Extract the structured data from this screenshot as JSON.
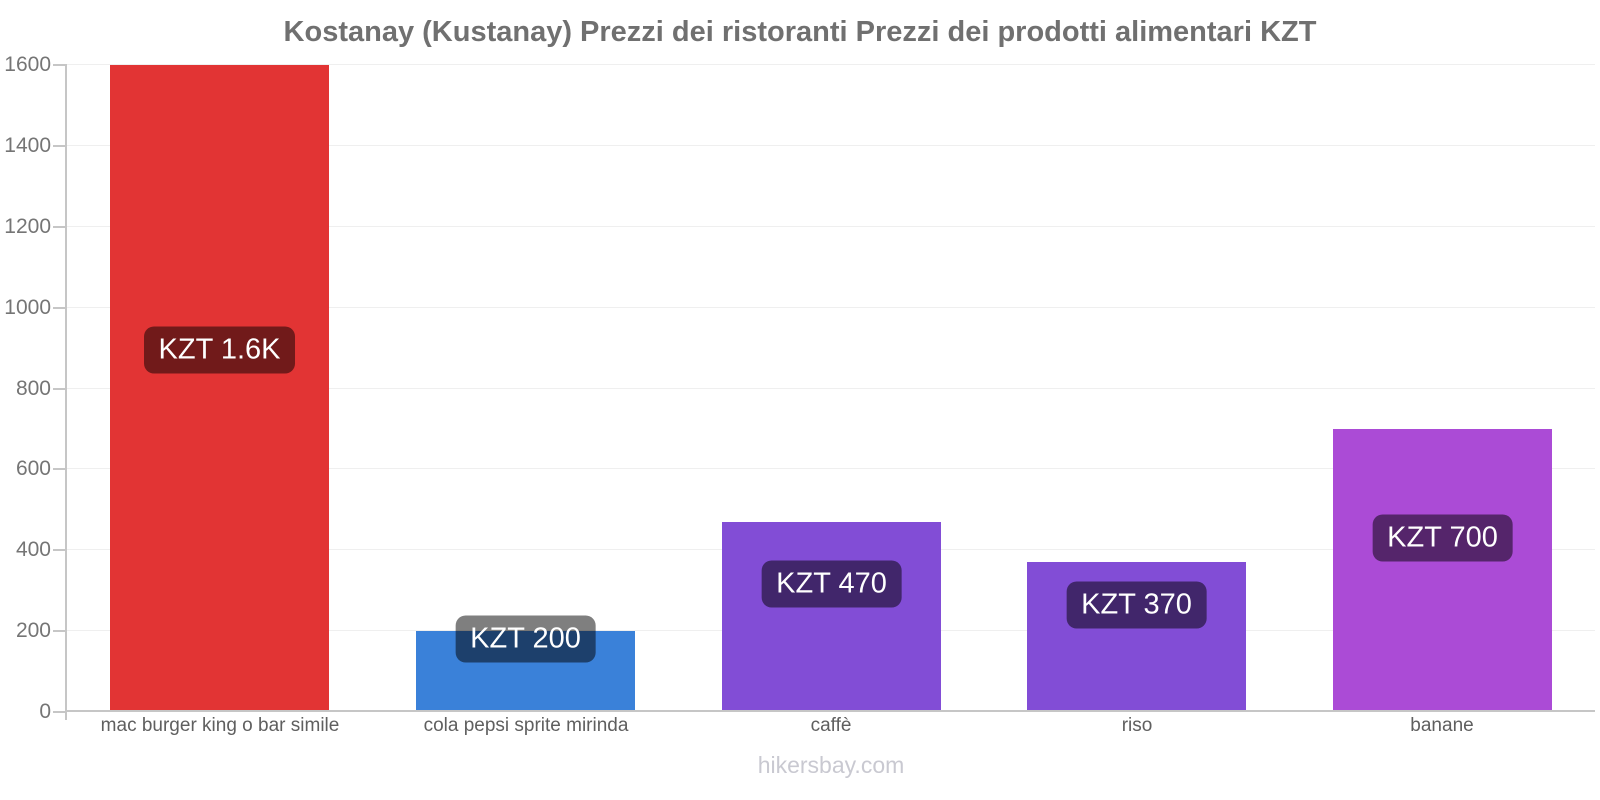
{
  "page": {
    "title": "Kostanay (Kustanay) Prezzi dei ristoranti Prezzi dei prodotti alimentari KZT",
    "watermark": "hikersbay.com"
  },
  "chart_data": {
    "type": "bar",
    "title": "Kostanay (Kustanay) Prezzi dei ristoranti Prezzi dei prodotti alimentari KZT",
    "currency": "KZT",
    "categories": [
      "mac burger king o bar simile",
      "cola pepsi sprite mirinda",
      "caffè",
      "riso",
      "banane"
    ],
    "values": [
      1600,
      200,
      470,
      370,
      700
    ],
    "bar_labels": [
      "KZT 1.6K",
      "KZT 200",
      "KZT 470",
      "KZT 370",
      "KZT 700"
    ],
    "bar_colors": [
      "#e23434",
      "#3a81d9",
      "#824dd6",
      "#824dd6",
      "#ab4bd6"
    ],
    "xlabel": "",
    "ylabel": "",
    "ylim": [
      0,
      1600
    ],
    "yticks": [
      0,
      200,
      400,
      600,
      800,
      1000,
      1200,
      1400,
      1600
    ],
    "grid": true,
    "legend": false,
    "colors": {
      "badge_bg": "rgba(0,0,0,0.5)",
      "badge_text": "#ffffff",
      "axis": "#c6c6c6",
      "gridline": "#efefef",
      "y_tick_label": "#757575",
      "x_category_label": "#5f5f5f",
      "title": "#707070",
      "watermark": "#c9c9d1"
    }
  }
}
